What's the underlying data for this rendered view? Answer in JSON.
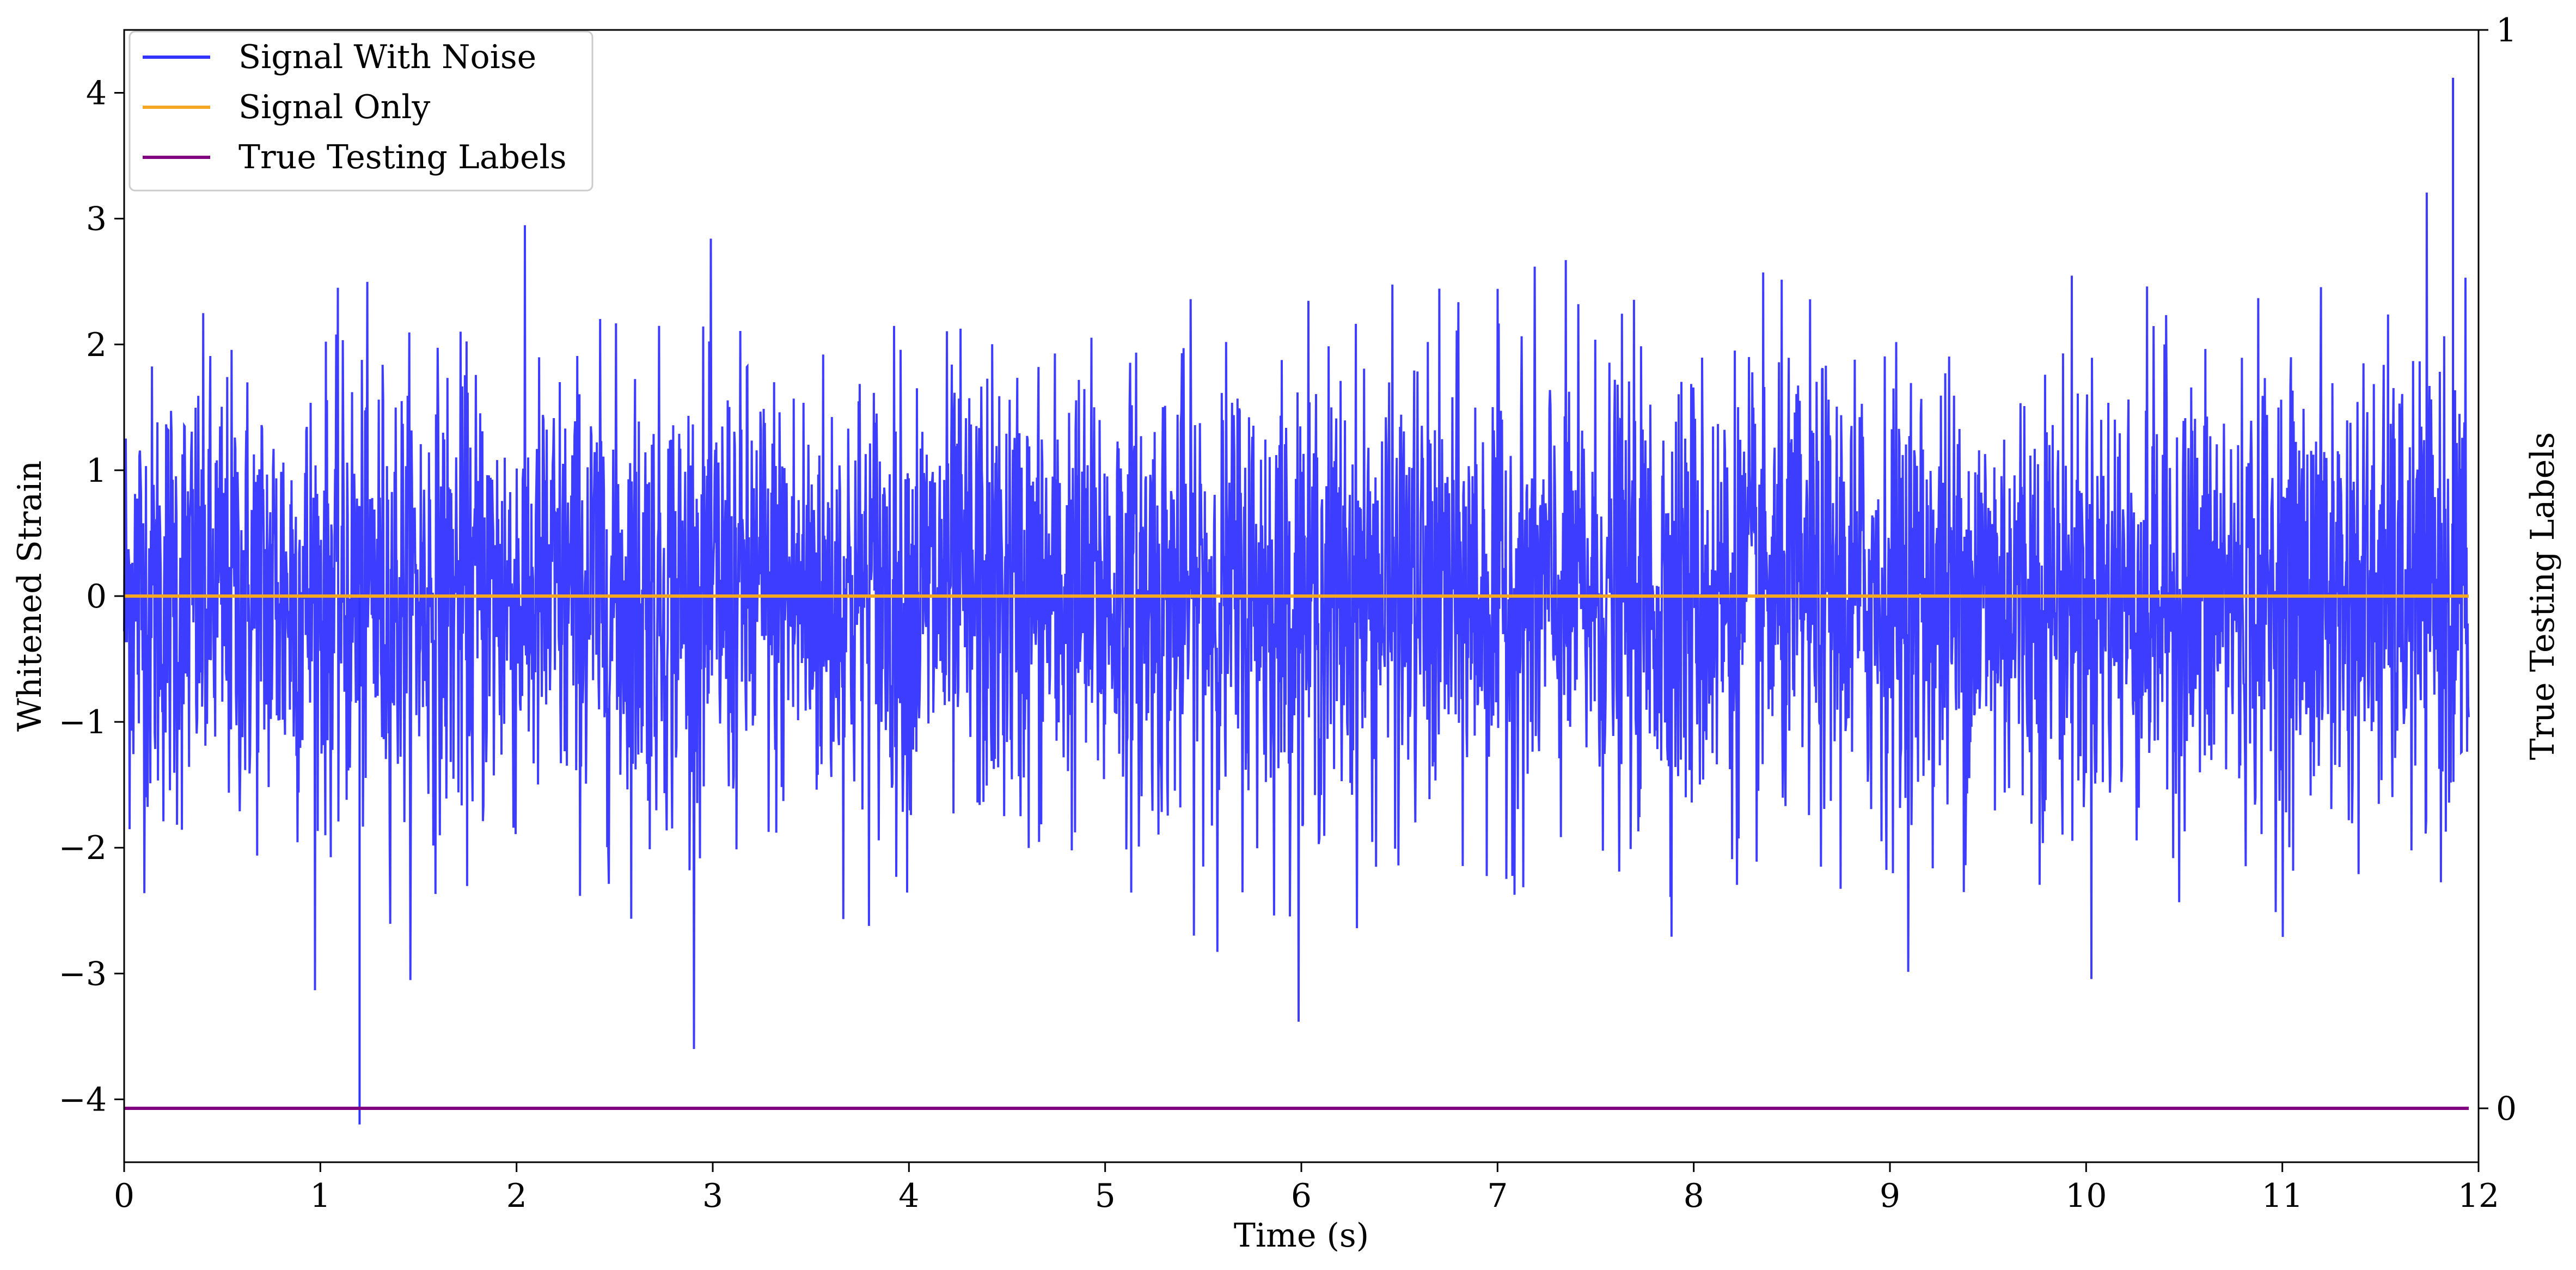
{
  "chart_data": {
    "type": "line",
    "title": "",
    "xlabel": "Time (s)",
    "ylabel": "Whitened Strain",
    "y2label": "True Testing Labels",
    "xlim": [
      0,
      12
    ],
    "ylim": [
      -4.5,
      4.5
    ],
    "y2lim": [
      -0.05,
      1.0
    ],
    "x_ticks": [
      "0",
      "1",
      "2",
      "3",
      "4",
      "5",
      "6",
      "7",
      "8",
      "9",
      "10",
      "11",
      "12"
    ],
    "y_ticks": [
      "−4",
      "−3",
      "−2",
      "−1",
      "0",
      "1",
      "2",
      "3",
      "4"
    ],
    "y2_ticks": [
      "0",
      "1"
    ],
    "grid": false,
    "legend_position": "upper-left",
    "series": [
      {
        "name": "Signal With Noise",
        "color": "#3333ff",
        "axis": "left",
        "style": "noise",
        "noise_sigma": 0.9,
        "peak_high": 4.12,
        "peak_low": -4.2,
        "x_range": [
          0,
          11.95
        ]
      },
      {
        "name": "Signal Only",
        "color": "#f5a623",
        "axis": "left",
        "x": [
          0,
          11.95
        ],
        "values": [
          0,
          0
        ]
      },
      {
        "name": "True Testing Labels",
        "color": "#800080",
        "axis": "right",
        "x": [
          0,
          11.95
        ],
        "values": [
          0,
          0
        ]
      }
    ]
  }
}
